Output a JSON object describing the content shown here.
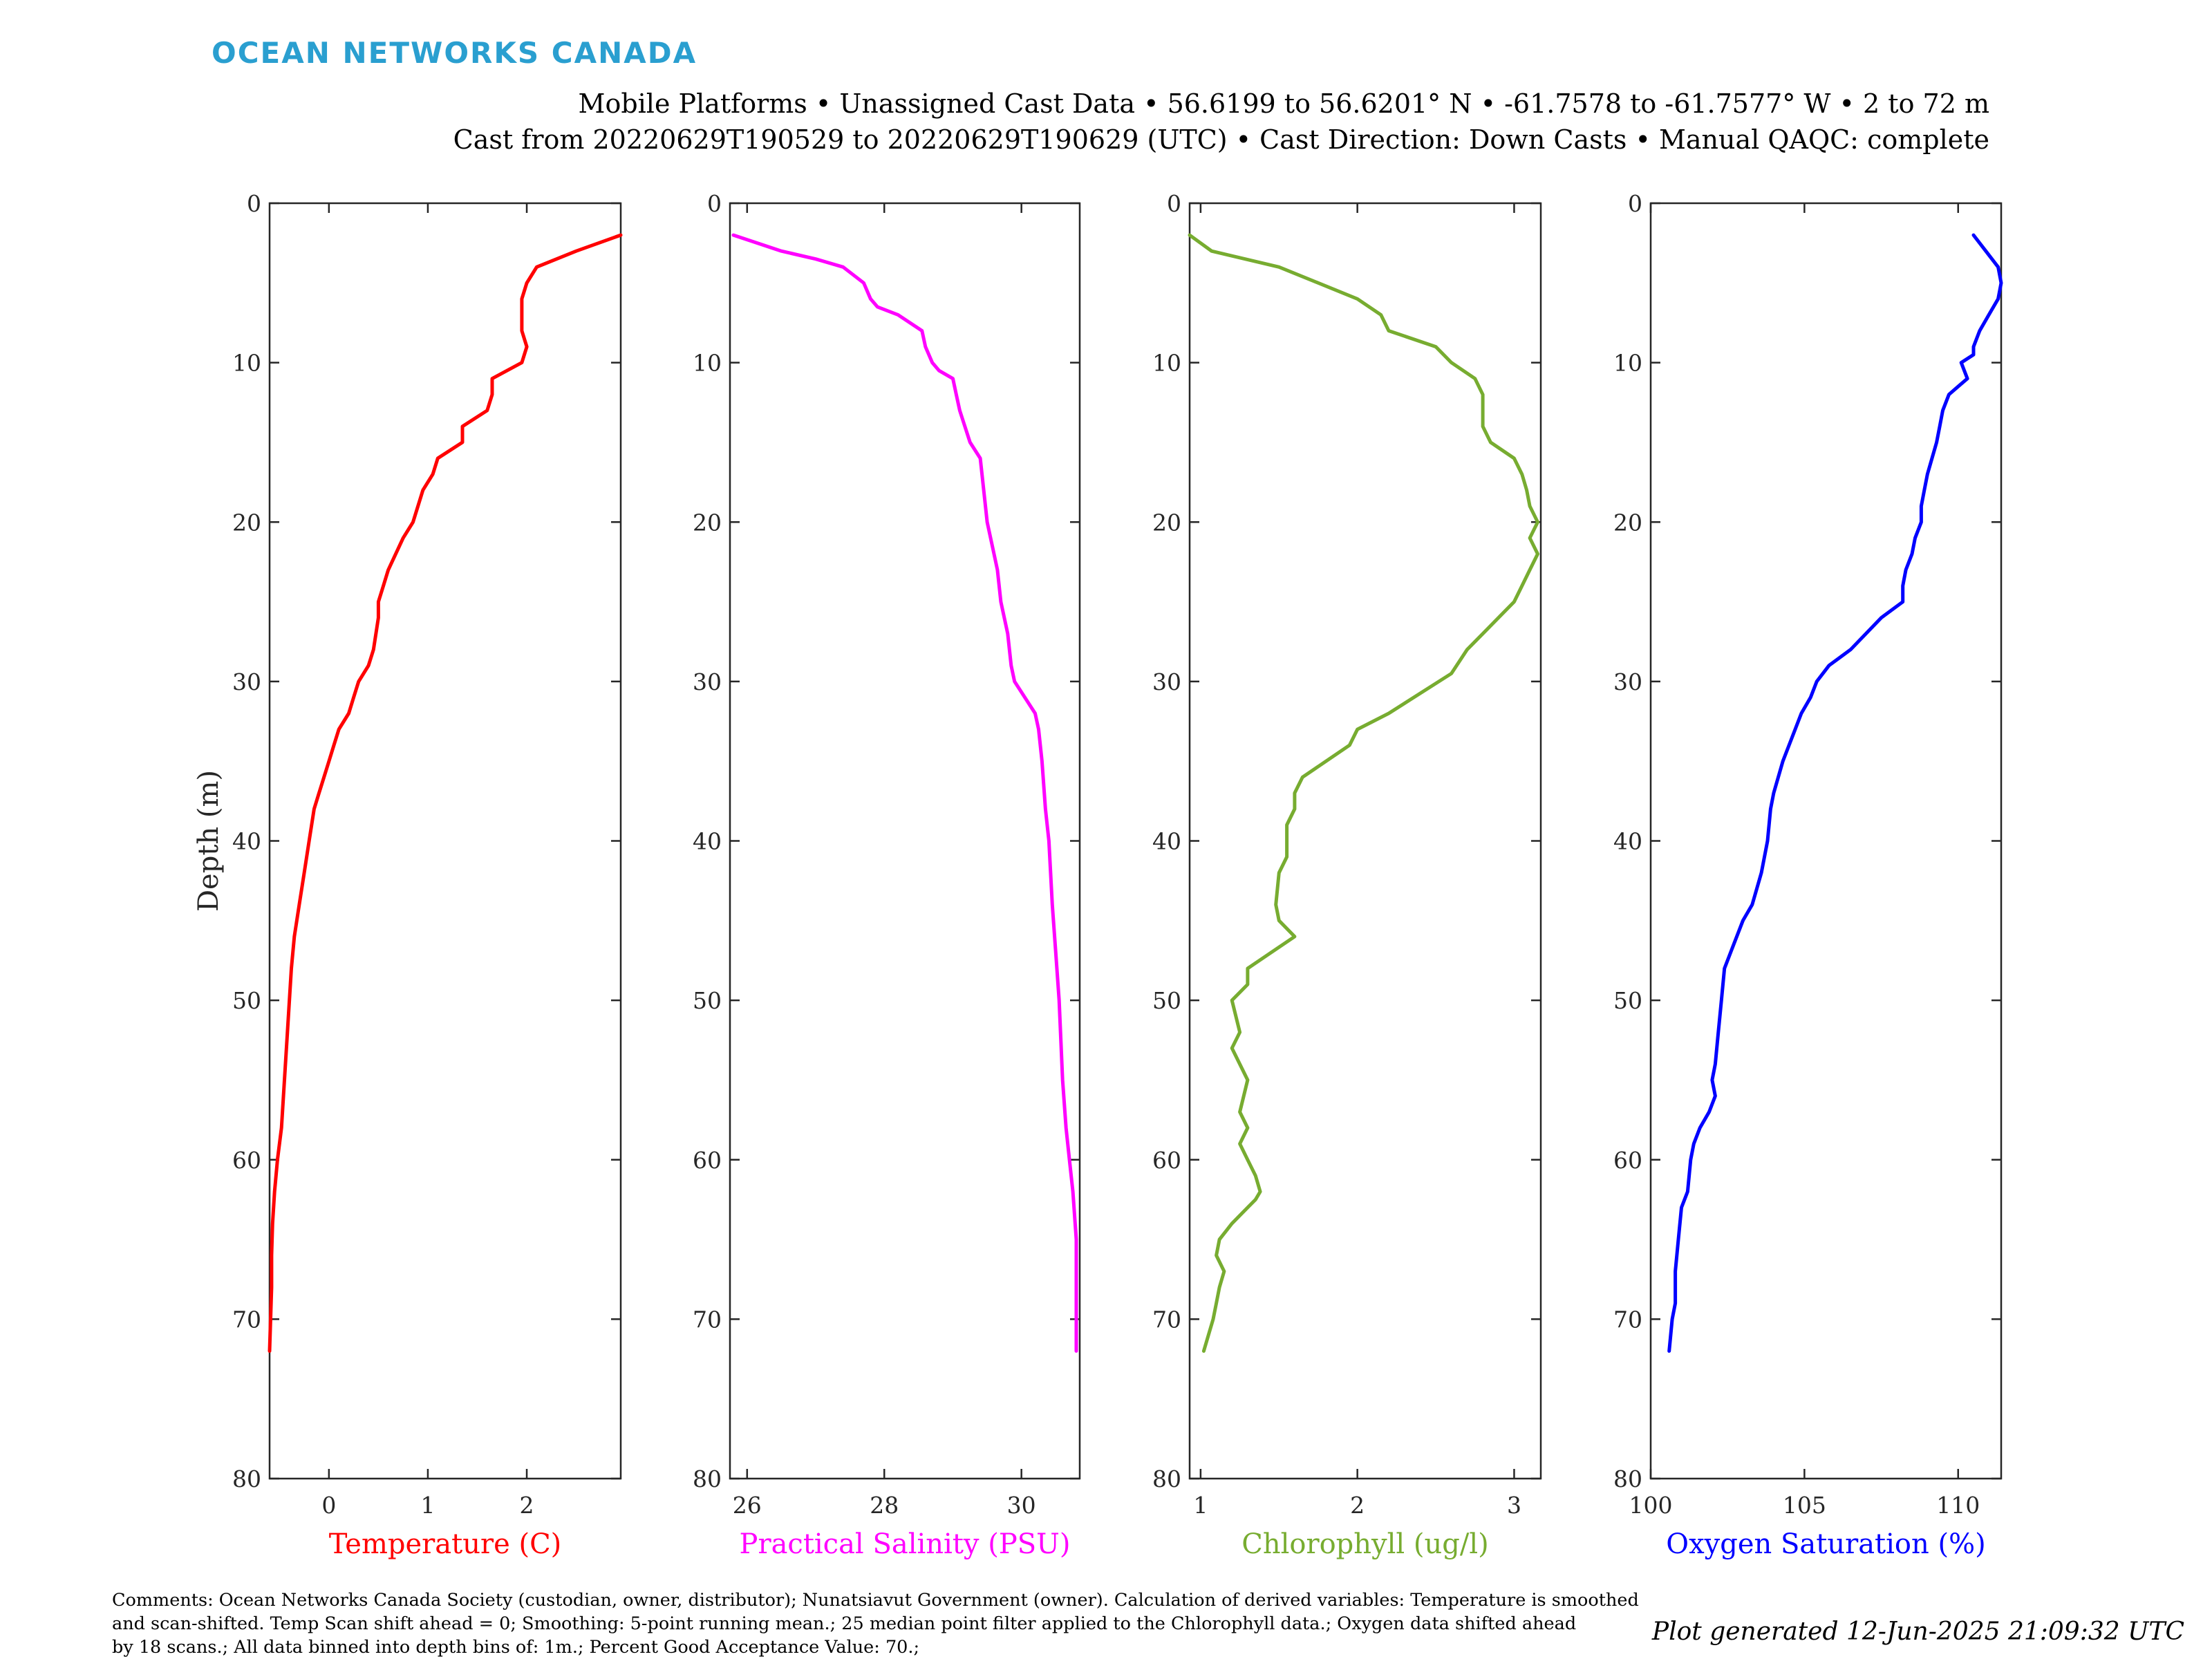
{
  "header": {
    "logo_text": "OCEAN NETWORKS CANADA",
    "line1": "Mobile Platforms • Unassigned Cast Data • 56.6199 to 56.6201° N • -61.7578 to -61.7577° W • 2 to 72 m",
    "line2": "Cast from 20220629T190529 to 20220629T190629 (UTC) • Cast Direction: Down Casts • Manual QAQC: complete"
  },
  "footer": {
    "comments_line1": "Comments: Ocean Networks Canada Society (custodian, owner, distributor); Nunatsiavut Government (owner). Calculation of derived variables: Temperature is smoothed",
    "comments_line2": "and scan-shifted. Temp Scan shift ahead = 0; Smoothing: 5-point running mean.; 25 median point filter applied to the Chlorophyll data.; Oxygen data shifted ahead",
    "comments_line3": "by 18 scans.; All data binned into depth bins of: 1m.; Percent Good Acceptance Value: 70.;",
    "generated": "Plot generated 12-Jun-2025 21:09:32 UTC"
  },
  "chart_data": [
    {
      "type": "line",
      "xlabel": "Temperature (C)",
      "ylabel": "Depth (m)",
      "color": "#ff0000",
      "xlim": [
        -0.6,
        2.95
      ],
      "xticks": [
        0,
        1,
        2
      ],
      "ylim": [
        0,
        80
      ],
      "yticks": [
        0,
        10,
        20,
        30,
        40,
        50,
        60,
        70,
        80
      ],
      "y_reversed": true,
      "x": [
        2.95,
        2.5,
        2.1,
        2.0,
        1.95,
        1.95,
        2.0,
        1.95,
        1.65,
        1.65,
        1.6,
        1.35,
        1.35,
        1.1,
        1.05,
        0.95,
        0.85,
        0.75,
        0.6,
        0.55,
        0.5,
        0.5,
        0.45,
        0.4,
        0.3,
        0.25,
        0.2,
        0.1,
        0.05,
        0.0,
        -0.05,
        -0.1,
        -0.15,
        -0.2,
        -0.25,
        -0.3,
        -0.35,
        -0.38,
        -0.42,
        -0.45,
        -0.48,
        -0.5,
        -0.52,
        -0.55,
        -0.57,
        -0.58,
        -0.58,
        -0.6
      ],
      "y": [
        2,
        3,
        4,
        5,
        6,
        8,
        9,
        10,
        11,
        12,
        13,
        14,
        15,
        16,
        17,
        18,
        20,
        21,
        23,
        24,
        25,
        26,
        28,
        29,
        30,
        31,
        32,
        33,
        34,
        35,
        36,
        37,
        38,
        40,
        42,
        44,
        46,
        48,
        52,
        55,
        58,
        59,
        60,
        62,
        64,
        66,
        68,
        72
      ]
    },
    {
      "type": "line",
      "xlabel": "Practical Salinity (PSU)",
      "color": "#ff00ff",
      "xlim": [
        25.75,
        30.85
      ],
      "xticks": [
        26,
        28,
        30
      ],
      "ylim": [
        0,
        80
      ],
      "yticks": [
        0,
        10,
        20,
        30,
        40,
        50,
        60,
        70,
        80
      ],
      "y_reversed": true,
      "x": [
        25.8,
        26.5,
        27.0,
        27.4,
        27.7,
        27.8,
        27.9,
        28.2,
        28.55,
        28.6,
        28.7,
        28.8,
        29.0,
        29.05,
        29.1,
        29.25,
        29.4,
        29.45,
        29.5,
        29.6,
        29.65,
        29.7,
        29.8,
        29.85,
        29.9,
        30.2,
        30.25,
        30.3,
        30.35,
        30.4,
        30.45,
        30.5,
        30.55,
        30.6,
        30.65,
        30.7,
        30.75,
        30.8,
        30.8
      ],
      "y": [
        2,
        3,
        3.5,
        4,
        5,
        6,
        6.5,
        7,
        8,
        9,
        10,
        10.5,
        11,
        12,
        13,
        15,
        16,
        18,
        20,
        22,
        23,
        25,
        27,
        29,
        30,
        32,
        33,
        35,
        38,
        40,
        44,
        47,
        50,
        55,
        58,
        60,
        62,
        65,
        72
      ]
    },
    {
      "type": "line",
      "xlabel": "Chlorophyll (ug/l)",
      "color": "#77ac30",
      "xlim": [
        0.93,
        3.17
      ],
      "xticks": [
        1,
        2,
        3
      ],
      "ylim": [
        0,
        80
      ],
      "yticks": [
        0,
        10,
        20,
        30,
        40,
        50,
        60,
        70,
        80
      ],
      "y_reversed": true,
      "x": [
        0.93,
        1.07,
        1.5,
        1.75,
        2.0,
        2.15,
        2.2,
        2.5,
        2.6,
        2.75,
        2.8,
        2.8,
        2.85,
        3.0,
        3.05,
        3.08,
        3.1,
        3.15,
        3.1,
        3.15,
        3.1,
        3.05,
        3.0,
        2.9,
        2.8,
        2.7,
        2.6,
        2.2,
        2.0,
        1.95,
        1.8,
        1.65,
        1.6,
        1.6,
        1.55,
        1.55,
        1.5,
        1.48,
        1.5,
        1.6,
        1.45,
        1.3,
        1.3,
        1.2,
        1.25,
        1.2,
        1.3,
        1.25,
        1.3,
        1.25,
        1.3,
        1.35,
        1.38,
        1.35,
        1.3,
        1.2,
        1.12,
        1.1,
        1.15,
        1.12,
        1.1,
        1.08,
        1.05,
        1.02
      ],
      "y": [
        2,
        3,
        4,
        5,
        6,
        7,
        8,
        9,
        10,
        11,
        12,
        14,
        15,
        16,
        17,
        18,
        19,
        20,
        21,
        22,
        23,
        24,
        25,
        26,
        27,
        28,
        29.5,
        32,
        33,
        34,
        35,
        36,
        37,
        38,
        39,
        41,
        42,
        44,
        45,
        46,
        47,
        48,
        49,
        50,
        52,
        53,
        55,
        57,
        58,
        59,
        60,
        61,
        62,
        62.5,
        63,
        64,
        65,
        66,
        67,
        68,
        69,
        70,
        71,
        72
      ]
    },
    {
      "type": "line",
      "xlabel": "Oxygen Saturation (%)",
      "color": "#0000ff",
      "xlim": [
        100,
        111.4
      ],
      "xticks": [
        100,
        105,
        110
      ],
      "ylim": [
        0,
        80
      ],
      "yticks": [
        0,
        10,
        20,
        30,
        40,
        50,
        60,
        70,
        80
      ],
      "y_reversed": true,
      "x": [
        110.5,
        110.9,
        111.3,
        111.4,
        111.3,
        111.0,
        110.7,
        110.5,
        110.5,
        110.1,
        110.3,
        110.0,
        109.7,
        109.5,
        109.4,
        109.3,
        109.0,
        108.9,
        108.8,
        108.8,
        108.6,
        108.5,
        108.3,
        108.2,
        108.2,
        107.5,
        106.5,
        105.8,
        105.4,
        105.2,
        104.9,
        104.7,
        104.5,
        104.3,
        104.0,
        103.9,
        103.8,
        103.6,
        103.3,
        103.0,
        102.6,
        102.4,
        102.3,
        102.2,
        102.1,
        102.0,
        102.1,
        101.9,
        101.6,
        101.4,
        101.3,
        101.2,
        101.0,
        100.9,
        100.8,
        100.8,
        100.8,
        100.7,
        100.6
      ],
      "y": [
        2,
        3,
        4,
        5,
        6,
        7,
        8,
        9,
        9.5,
        10,
        11,
        11.5,
        12,
        13,
        14,
        15,
        17,
        18,
        19,
        20,
        21,
        22,
        23,
        24,
        25,
        26,
        28,
        29,
        30,
        31,
        32,
        33,
        34,
        35,
        37,
        38,
        40,
        42,
        44,
        45,
        47,
        48,
        50,
        52,
        54,
        55,
        56,
        57,
        58,
        59,
        60,
        62,
        63,
        65,
        67,
        68,
        69,
        70,
        72
      ]
    }
  ]
}
